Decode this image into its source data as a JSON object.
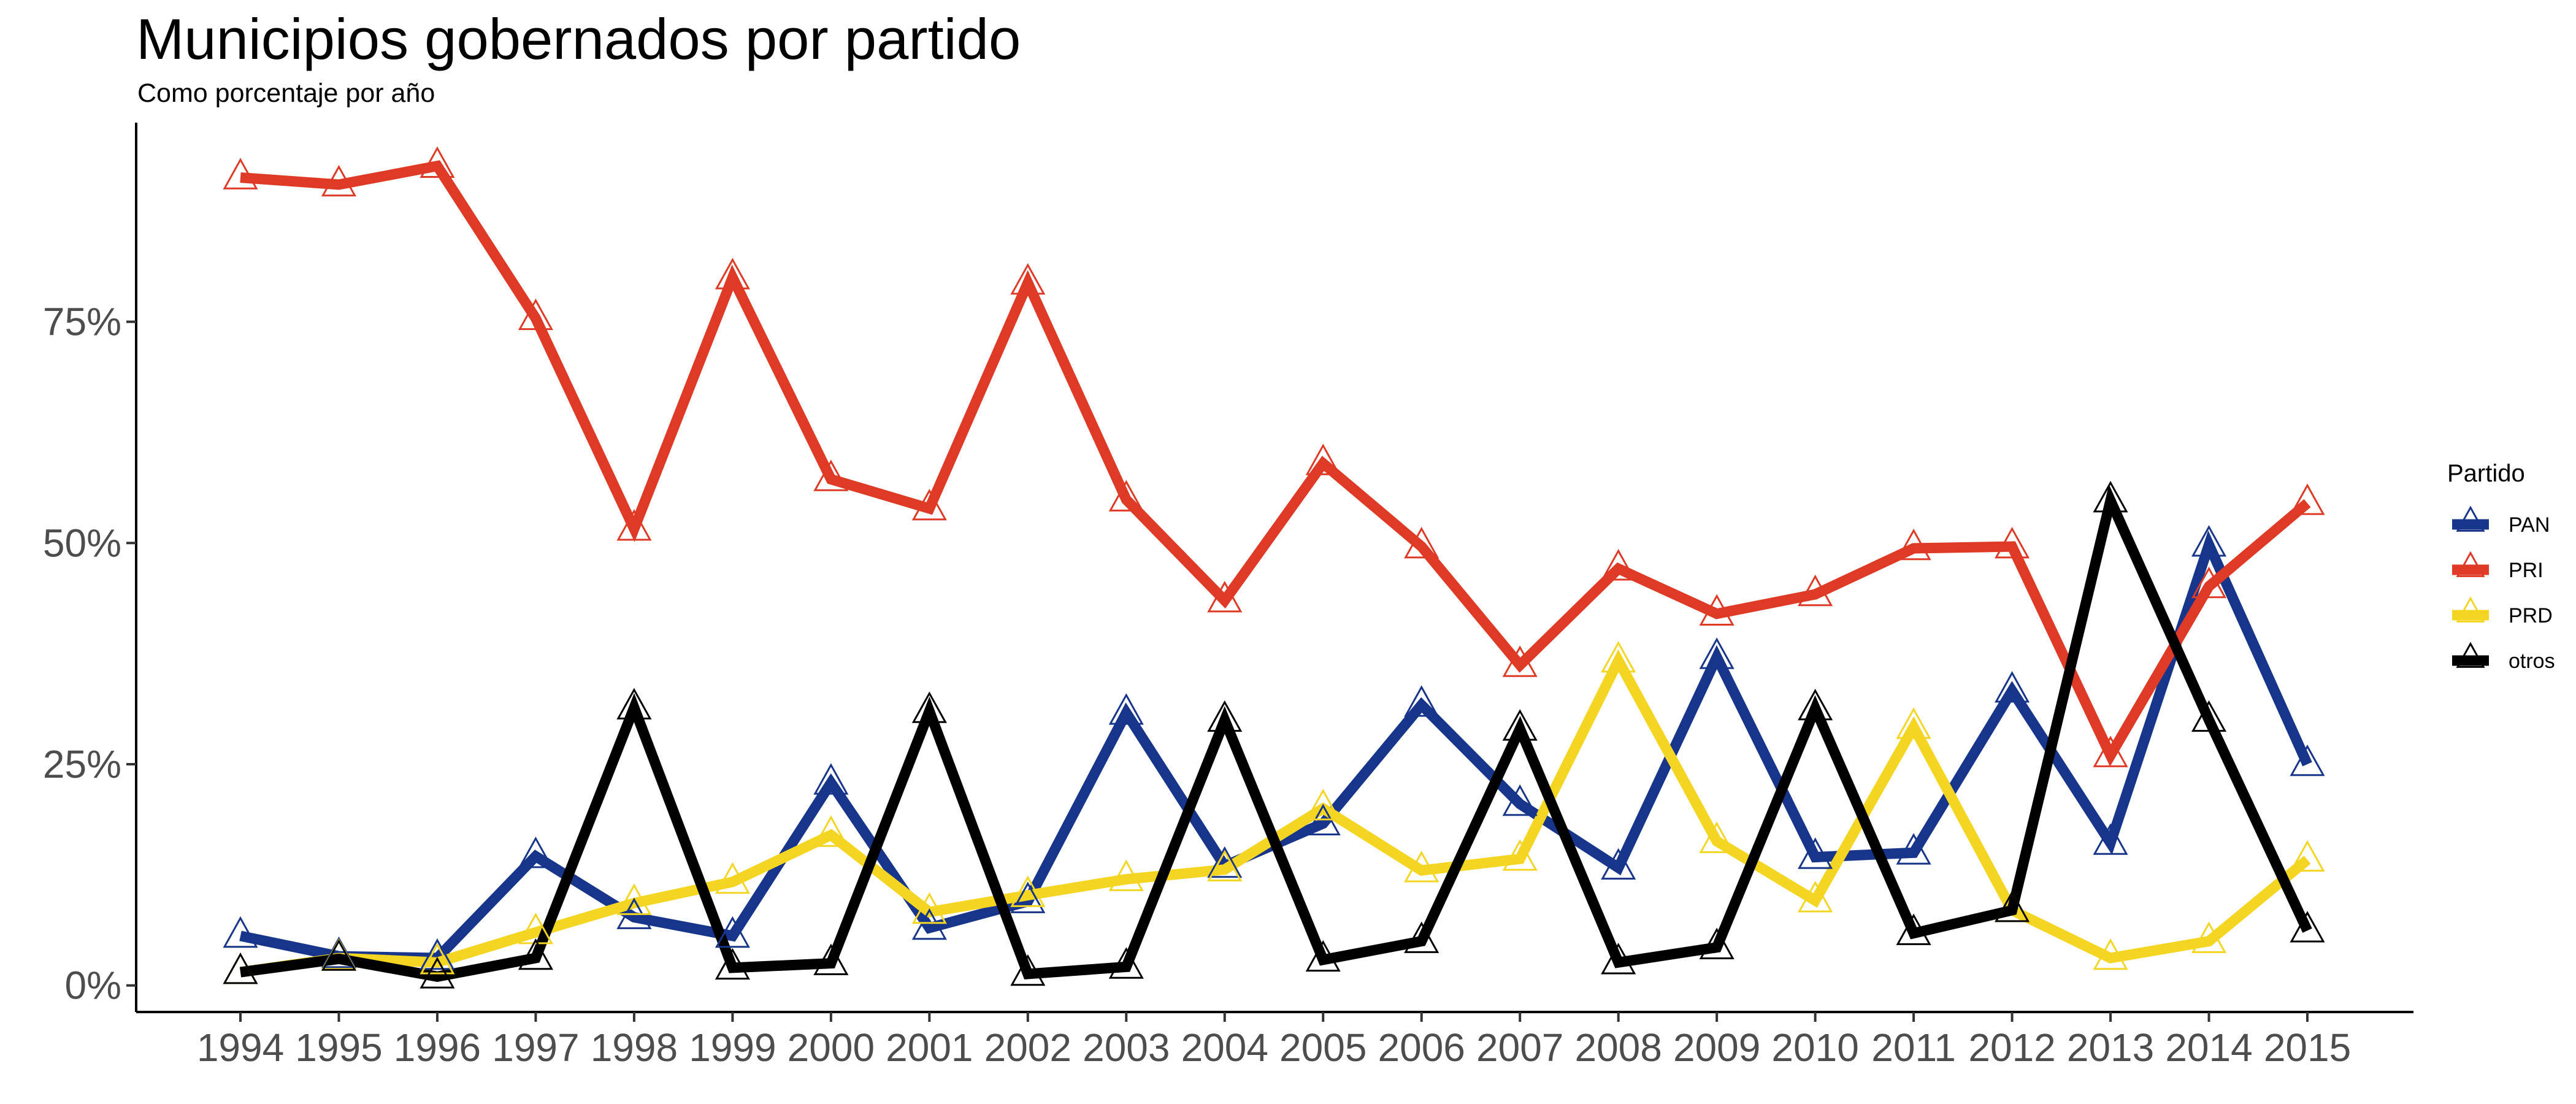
{
  "chart_data": {
    "type": "line",
    "title": "Municipios gobernados por partido",
    "subtitle": "Como porcentaje por año",
    "xlabel": "",
    "ylabel": "",
    "x": [
      1994,
      1995,
      1996,
      1997,
      1998,
      1999,
      2000,
      2001,
      2002,
      2003,
      2004,
      2005,
      2006,
      2007,
      2008,
      2009,
      2010,
      2011,
      2012,
      2013,
      2014,
      2015
    ],
    "ylim": [
      -0.03,
      0.975
    ],
    "y_ticks": [
      0,
      0.25,
      0.5,
      0.75
    ],
    "y_tick_labels": [
      "0%",
      "25%",
      "50%",
      "75%"
    ],
    "grid": false,
    "legend_title": "Partido",
    "legend_position": "right",
    "marker": "open-triangle",
    "series": [
      {
        "name": "PAN",
        "color": "#17358a",
        "values": [
          0.056,
          0.033,
          0.031,
          0.146,
          0.077,
          0.056,
          0.229,
          0.065,
          0.095,
          0.308,
          0.135,
          0.183,
          0.317,
          0.205,
          0.133,
          0.371,
          0.145,
          0.15,
          0.333,
          0.161,
          0.498,
          0.25
        ]
      },
      {
        "name": "PRI",
        "color": "#df3a26",
        "values": [
          0.913,
          0.905,
          0.926,
          0.754,
          0.516,
          0.8,
          0.572,
          0.539,
          0.794,
          0.549,
          0.435,
          0.59,
          0.496,
          0.362,
          0.471,
          0.42,
          0.442,
          0.494,
          0.496,
          0.26,
          0.451,
          0.545
        ]
      },
      {
        "name": "PRD",
        "color": "#f4d622",
        "values": [
          0.015,
          0.031,
          0.026,
          0.06,
          0.093,
          0.117,
          0.17,
          0.083,
          0.102,
          0.12,
          0.131,
          0.2,
          0.13,
          0.143,
          0.367,
          0.163,
          0.096,
          0.292,
          0.085,
          0.031,
          0.05,
          0.142
        ]
      },
      {
        "name": "otros",
        "color": "#000000",
        "values": [
          0.015,
          0.03,
          0.01,
          0.031,
          0.314,
          0.02,
          0.025,
          0.31,
          0.013,
          0.021,
          0.3,
          0.029,
          0.05,
          0.29,
          0.026,
          0.043,
          0.313,
          0.059,
          0.085,
          0.548,
          0.3,
          0.062
        ]
      }
    ]
  }
}
